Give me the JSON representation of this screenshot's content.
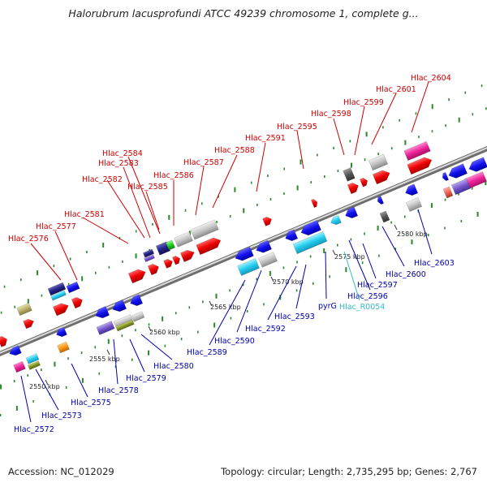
{
  "title": "Halorubrum lacusprofundi ATCC 49239 chromosome 1, complete g...",
  "footer": {
    "accession": "Accession: NC_012029",
    "summary": "Topology: circular; Length: 2,735,295 bp; Genes: 2,767"
  },
  "colors": {
    "forward_label": "#cc0000",
    "reverse_label": "#0000aa",
    "rna_label": "#33bbcc",
    "backbone": "#888888",
    "tick": "#2a8a2a"
  },
  "ticks": [
    "2550 kbp",
    "2555 kbp",
    "2560 kbp",
    "2565 kbp",
    "2570 kbp",
    "2575 kbp",
    "2580 kbp"
  ],
  "forward_genes": [
    "Hlac_2576",
    "Hlac_2577",
    "Hlac_2581",
    "Hlac_2582",
    "Hlac_2583",
    "Hlac_2584",
    "Hlac_2585",
    "Hlac_2586",
    "Hlac_2587",
    "Hlac_2588",
    "Hlac_2591",
    "Hlac_2595",
    "Hlac_2598",
    "Hlac_2599",
    "Hlac_2601",
    "Hlac_2604"
  ],
  "reverse_genes": [
    "Hlac_2572",
    "Hlac_2573",
    "Hlac_2575",
    "Hlac_2578",
    "Hlac_2579",
    "Hlac_2580",
    "Hlac_2589",
    "Hlac_2590",
    "Hlac_2592",
    "Hlac_2593",
    "pyrG",
    "Hlac_2596",
    "Hlac_2597",
    "Hlac_2600",
    "Hlac_2603"
  ],
  "rna_genes": [
    "Hlac_R0054"
  ]
}
